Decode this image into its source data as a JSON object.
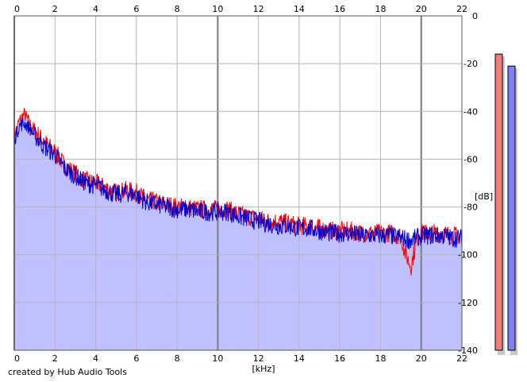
{
  "credit": "created by Hub Audio Tools",
  "chart_data": {
    "type": "area",
    "xlabel": "[kHz]",
    "ylabel": "[dB]",
    "xlim": [
      0,
      22
    ],
    "ylim": [
      -140,
      0
    ],
    "x_ticks": [
      0,
      2,
      4,
      6,
      8,
      10,
      12,
      14,
      16,
      18,
      20,
      22
    ],
    "y_ticks": [
      0,
      -20,
      -40,
      -60,
      -80,
      -100,
      -120,
      -140
    ],
    "grid": true,
    "series": [
      {
        "color": "#ff0000",
        "x": [
          0,
          0.25,
          0.5,
          0.75,
          1,
          1.5,
          2,
          2.5,
          3,
          3.5,
          4,
          4.5,
          5,
          5.5,
          6,
          6.5,
          7,
          7.5,
          8,
          8.5,
          9,
          9.5,
          10,
          10.5,
          11,
          11.5,
          12,
          12.5,
          13,
          13.5,
          14,
          14.5,
          15,
          15.5,
          16,
          16.5,
          17,
          17.5,
          18,
          18.5,
          19,
          19.2,
          19.5,
          19.8,
          20,
          20.5,
          21,
          21.5,
          22
        ],
        "values": [
          -50,
          -44,
          -41,
          -45,
          -48,
          -53,
          -57,
          -63,
          -66,
          -69,
          -70,
          -72,
          -74,
          -73,
          -74,
          -77,
          -78,
          -79,
          -80,
          -80,
          -81,
          -81,
          -81,
          -81,
          -83,
          -84,
          -85,
          -86,
          -86,
          -87,
          -88,
          -88,
          -89,
          -90,
          -90,
          -90,
          -91,
          -91,
          -91,
          -91,
          -92,
          -99,
          -105,
          -93,
          -91,
          -91,
          -91,
          -92,
          -92
        ]
      },
      {
        "color": "#0000cc",
        "x": [
          0,
          0.25,
          0.5,
          0.75,
          1,
          1.5,
          2,
          2.5,
          3,
          3.5,
          4,
          4.5,
          5,
          5.5,
          6,
          6.5,
          7,
          7.5,
          8,
          8.5,
          9,
          9.5,
          10,
          10.5,
          11,
          11.5,
          12,
          12.5,
          13,
          13.5,
          14,
          14.5,
          15,
          15.5,
          16,
          16.5,
          17,
          17.5,
          18,
          18.5,
          19,
          19.5,
          20,
          20.5,
          21,
          21.5,
          22
        ],
        "values": [
          -52,
          -46,
          -45,
          -47,
          -50,
          -55,
          -58,
          -64,
          -67,
          -70,
          -71,
          -73,
          -75,
          -74,
          -75,
          -78,
          -79,
          -80,
          -81,
          -81,
          -82,
          -82,
          -82,
          -82,
          -84,
          -85,
          -86,
          -87,
          -88,
          -88,
          -89,
          -89,
          -90,
          -91,
          -91,
          -91,
          -92,
          -92,
          -92,
          -92,
          -93,
          -94,
          -92,
          -92,
          -92,
          -93,
          -93
        ]
      }
    ],
    "level_meters": [
      {
        "color": "#f08080",
        "value": -16
      },
      {
        "color": "#8080f0",
        "value": -21
      }
    ],
    "fill_color": "#c0c0ff"
  }
}
